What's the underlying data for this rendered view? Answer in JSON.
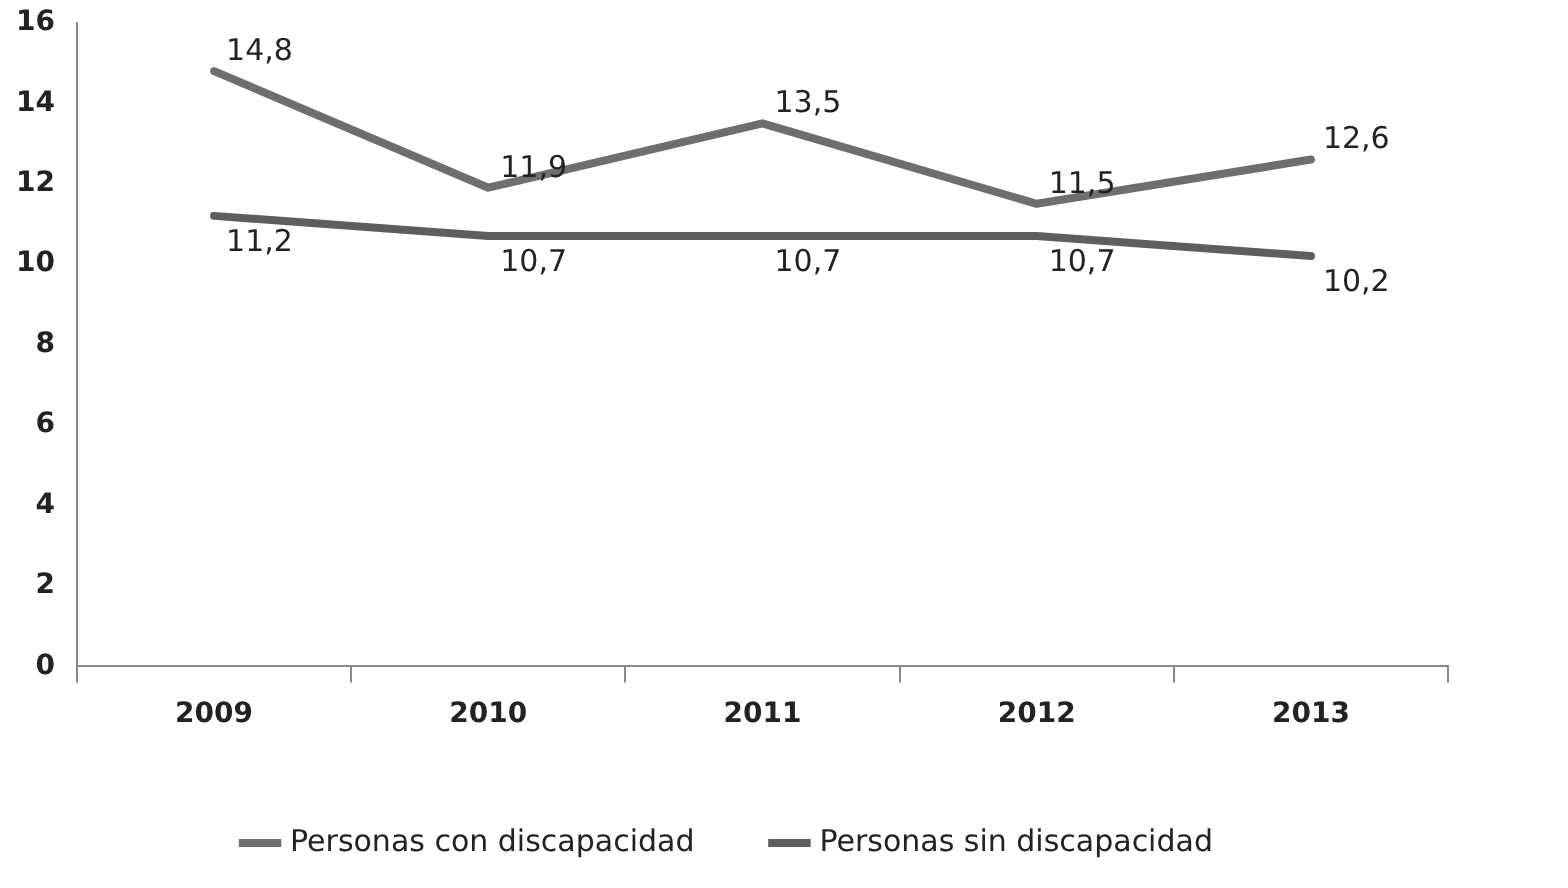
{
  "chart_data": {
    "type": "line",
    "categories": [
      "2009",
      "2010",
      "2011",
      "2012",
      "2013"
    ],
    "series": [
      {
        "name": "Personas con discapacidad",
        "color": "#6e6e6e",
        "values": [
          14.8,
          11.9,
          13.5,
          11.5,
          12.6
        ],
        "value_labels": [
          "14,8",
          "11,9",
          "13,5",
          "11,5",
          "12,6"
        ]
      },
      {
        "name": "Personas sin discapacidad",
        "color": "#5e5e5e",
        "values": [
          11.2,
          10.7,
          10.7,
          10.7,
          10.2
        ],
        "value_labels": [
          "11,2",
          "10,7",
          "10,7",
          "10,7",
          "10,2"
        ]
      }
    ],
    "ylim": [
      0,
      16
    ],
    "yticks": [
      0,
      2,
      4,
      6,
      8,
      10,
      12,
      14,
      16
    ],
    "grid": false,
    "legend": "bottom",
    "marker": "none",
    "line_style": "solid"
  }
}
